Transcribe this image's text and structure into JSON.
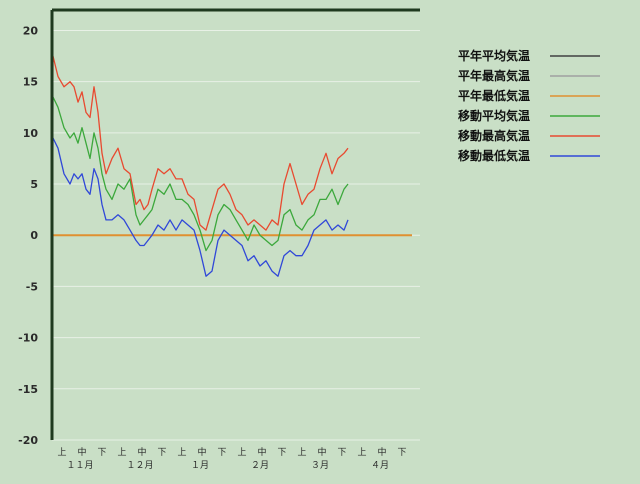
{
  "chart_data": {
    "type": "line",
    "title": "",
    "xlabel": "",
    "ylabel": "",
    "ylim": [
      -20,
      22
    ],
    "y_ticks": [
      "20",
      "15",
      "10",
      "5",
      "0",
      "-5",
      "-10",
      "-15",
      "-20"
    ],
    "grid": true,
    "legend_position": "right",
    "x_range": [
      0,
      18
    ],
    "x_ticks": [
      {
        "label": "上",
        "x": 0.5
      },
      {
        "label": "中",
        "x": 1.5
      },
      {
        "label": "下",
        "x": 2.5
      },
      {
        "label": "上",
        "x": 3.5
      },
      {
        "label": "中",
        "x": 4.5
      },
      {
        "label": "下",
        "x": 5.5
      },
      {
        "label": "上",
        "x": 6.5
      },
      {
        "label": "中",
        "x": 7.5
      },
      {
        "label": "下",
        "x": 8.5
      },
      {
        "label": "上",
        "x": 9.5
      },
      {
        "label": "中",
        "x": 10.5
      },
      {
        "label": "下",
        "x": 11.5
      },
      {
        "label": "上",
        "x": 12.5
      },
      {
        "label": "中",
        "x": 13.5
      },
      {
        "label": "下",
        "x": 14.5
      },
      {
        "label": "上",
        "x": 15.5
      },
      {
        "label": "中",
        "x": 16.5
      },
      {
        "label": "下",
        "x": 17.5
      }
    ],
    "month_labels": [
      {
        "label": "１１月",
        "x": 1.4
      },
      {
        "label": "１２月",
        "x": 4.4
      },
      {
        "label": "１月",
        "x": 7.4
      },
      {
        "label": "２月",
        "x": 10.4
      },
      {
        "label": "３月",
        "x": 13.4
      },
      {
        "label": "４月",
        "x": 16.4
      }
    ],
    "series": [
      {
        "name": "平年平均気温",
        "color": "#404040",
        "x": [],
        "values": []
      },
      {
        "name": "平年最高気温",
        "color": "#a0a0a0",
        "x": [],
        "values": []
      },
      {
        "name": "平年最低気温",
        "color": "#e09030",
        "x": [
          0,
          18
        ],
        "values": [
          0,
          0
        ]
      },
      {
        "name": "移動平均気温",
        "color": "#3ca83c",
        "x": [
          0,
          0.05,
          0.3,
          0.6,
          0.9,
          1.1,
          1.3,
          1.5,
          1.7,
          1.9,
          2.1,
          2.3,
          2.5,
          2.7,
          3.0,
          3.3,
          3.6,
          3.9,
          4.2,
          4.4,
          4.6,
          4.8,
          5.0,
          5.3,
          5.6,
          5.9,
          6.2,
          6.5,
          6.8,
          7.1,
          7.4,
          7.7,
          8.0,
          8.3,
          8.6,
          8.9,
          9.2,
          9.5,
          9.8,
          10.1,
          10.4,
          10.7,
          11.0,
          11.3,
          11.6,
          11.9,
          12.2,
          12.5,
          12.8,
          13.1,
          13.4,
          13.7,
          14.0,
          14.3,
          14.6,
          14.8
        ],
        "values": [
          0,
          13.5,
          12.5,
          10.5,
          9.5,
          10.0,
          9.0,
          10.5,
          9.0,
          7.5,
          10.0,
          8.5,
          6.0,
          4.5,
          3.5,
          5.0,
          4.5,
          5.5,
          2.0,
          1.0,
          1.5,
          2.0,
          2.5,
          4.5,
          4.0,
          5.0,
          3.5,
          3.5,
          3.0,
          2.0,
          0.5,
          -1.5,
          -0.5,
          2.0,
          3.0,
          2.5,
          1.5,
          0.5,
          -0.5,
          1.0,
          0.0,
          -0.5,
          -1.0,
          -0.5,
          2.0,
          2.5,
          1.0,
          0.5,
          1.5,
          2.0,
          3.5,
          3.5,
          4.5,
          3.0,
          4.5,
          5.0
        ]
      },
      {
        "name": "移動最高気温",
        "color": "#e84a30",
        "x": [
          0,
          0.05,
          0.3,
          0.6,
          0.9,
          1.1,
          1.3,
          1.5,
          1.7,
          1.9,
          2.1,
          2.3,
          2.5,
          2.7,
          3.0,
          3.3,
          3.6,
          3.9,
          4.2,
          4.4,
          4.6,
          4.8,
          5.0,
          5.3,
          5.6,
          5.9,
          6.2,
          6.5,
          6.8,
          7.1,
          7.4,
          7.7,
          8.0,
          8.3,
          8.6,
          8.9,
          9.2,
          9.5,
          9.8,
          10.1,
          10.4,
          10.7,
          11.0,
          11.3,
          11.6,
          11.9,
          12.2,
          12.5,
          12.8,
          13.1,
          13.4,
          13.7,
          14.0,
          14.3,
          14.6,
          14.8
        ],
        "values": [
          0,
          17.5,
          15.5,
          14.5,
          15.0,
          14.5,
          13.0,
          14.0,
          12.0,
          11.5,
          14.5,
          12.0,
          8.0,
          6.0,
          7.5,
          8.5,
          6.5,
          6.0,
          3.0,
          3.5,
          2.5,
          3.0,
          4.5,
          6.5,
          6.0,
          6.5,
          5.5,
          5.5,
          4.0,
          3.5,
          1.0,
          0.5,
          2.5,
          4.5,
          5.0,
          4.0,
          2.5,
          2.0,
          1.0,
          1.5,
          1.0,
          0.5,
          1.5,
          1.0,
          5.0,
          7.0,
          5.0,
          3.0,
          4.0,
          4.5,
          6.5,
          8.0,
          6.0,
          7.5,
          8.0,
          8.5
        ]
      },
      {
        "name": "移動最低気温",
        "color": "#3048d8",
        "x": [
          0,
          0.05,
          0.3,
          0.6,
          0.9,
          1.1,
          1.3,
          1.5,
          1.7,
          1.9,
          2.1,
          2.3,
          2.5,
          2.7,
          3.0,
          3.3,
          3.6,
          3.9,
          4.2,
          4.4,
          4.6,
          4.8,
          5.0,
          5.3,
          5.6,
          5.9,
          6.2,
          6.5,
          6.8,
          7.1,
          7.4,
          7.7,
          8.0,
          8.3,
          8.6,
          8.9,
          9.2,
          9.5,
          9.8,
          10.1,
          10.4,
          10.7,
          11.0,
          11.3,
          11.6,
          11.9,
          12.2,
          12.5,
          12.8,
          13.1,
          13.4,
          13.7,
          14.0,
          14.3,
          14.6,
          14.8
        ],
        "values": [
          0,
          9.5,
          8.5,
          6.0,
          5.0,
          6.0,
          5.5,
          6.0,
          4.5,
          4.0,
          6.5,
          5.5,
          3.0,
          1.5,
          1.5,
          2.0,
          1.5,
          0.5,
          -0.5,
          -1.0,
          -1.0,
          -0.5,
          0.0,
          1.0,
          0.5,
          1.5,
          0.5,
          1.5,
          1.0,
          0.5,
          -1.5,
          -4.0,
          -3.5,
          -0.5,
          0.5,
          0.0,
          -0.5,
          -1.0,
          -2.5,
          -2.0,
          -3.0,
          -2.5,
          -3.5,
          -4.0,
          -2.0,
          -1.5,
          -2.0,
          -2.0,
          -1.0,
          0.5,
          1.0,
          1.5,
          0.5,
          1.0,
          0.5,
          1.5
        ]
      }
    ]
  }
}
